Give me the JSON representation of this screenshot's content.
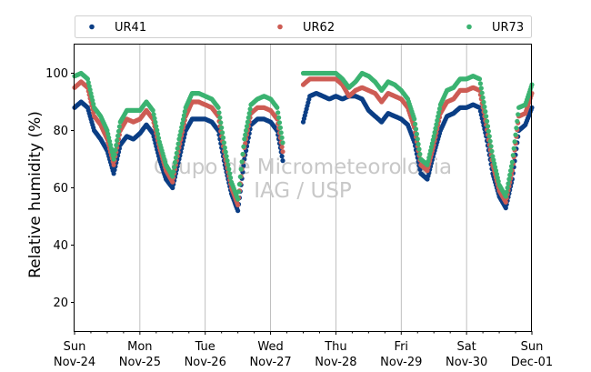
{
  "chart_data": {
    "type": "scatter",
    "ylabel": "Relative humidity (%)",
    "xlabel": "",
    "ylim": [
      10,
      110
    ],
    "yticks": [
      20,
      40,
      60,
      80,
      100
    ],
    "xlim": [
      0,
      7
    ],
    "x_unit": "days since Nov-24 00:00",
    "xticks": [
      {
        "x": 0,
        "day": "Sun",
        "date": "Nov-24"
      },
      {
        "x": 1,
        "day": "Mon",
        "date": "Nov-25"
      },
      {
        "x": 2,
        "day": "Tue",
        "date": "Nov-26"
      },
      {
        "x": 3,
        "day": "Wed",
        "date": "Nov-27"
      },
      {
        "x": 4,
        "day": "Thu",
        "date": "Nov-28"
      },
      {
        "x": 5,
        "day": "Fri",
        "date": "Nov-29"
      },
      {
        "x": 6,
        "day": "Sat",
        "date": "Nov-30"
      },
      {
        "x": 7,
        "day": "Sun",
        "date": "Dec-01"
      }
    ],
    "grid": "vertical",
    "legend_position": "top",
    "watermark": [
      "Grupo de Micrometeorologia",
      "IAG / USP"
    ],
    "series": [
      {
        "name": "UR41",
        "color": "#0b3e85",
        "x": [
          0.0,
          0.1,
          0.2,
          0.3,
          0.4,
          0.5,
          0.6,
          0.7,
          0.8,
          0.9,
          1.0,
          1.1,
          1.2,
          1.3,
          1.4,
          1.5,
          1.6,
          1.7,
          1.8,
          1.9,
          2.0,
          2.1,
          2.2,
          2.3,
          2.4,
          2.5,
          2.6,
          2.7,
          2.8,
          2.9,
          3.0,
          3.1,
          3.2,
          3.3,
          3.4,
          3.5,
          3.6,
          3.7,
          3.8,
          3.9,
          4.0,
          4.1,
          4.2,
          4.3,
          4.4,
          4.5,
          4.6,
          4.7,
          4.8,
          4.9,
          5.0,
          5.1,
          5.2,
          5.3,
          5.4,
          5.5,
          5.6,
          5.7,
          5.8,
          5.9,
          6.0,
          6.1,
          6.2,
          6.3,
          6.4,
          6.5,
          6.6,
          6.7,
          6.8,
          6.9,
          7.0
        ],
        "y": [
          88,
          90,
          88,
          80,
          77,
          73,
          65,
          75,
          78,
          77,
          79,
          82,
          79,
          70,
          63,
          60,
          70,
          80,
          84,
          84,
          84,
          83,
          80,
          68,
          58,
          52,
          70,
          82,
          84,
          84,
          83,
          80,
          68,
          null,
          null,
          83,
          92,
          93,
          92,
          91,
          92,
          91,
          92,
          92,
          91,
          87,
          85,
          83,
          86,
          85,
          84,
          82,
          76,
          65,
          63,
          72,
          80,
          85,
          86,
          88,
          88,
          89,
          88,
          78,
          65,
          57,
          53,
          63,
          80,
          82,
          88
        ]
      },
      {
        "name": "UR62",
        "color": "#cd5c54",
        "x": [
          0.0,
          0.1,
          0.2,
          0.3,
          0.4,
          0.5,
          0.6,
          0.7,
          0.8,
          0.9,
          1.0,
          1.1,
          1.2,
          1.3,
          1.4,
          1.5,
          1.6,
          1.7,
          1.8,
          1.9,
          2.0,
          2.1,
          2.2,
          2.3,
          2.4,
          2.5,
          2.6,
          2.7,
          2.8,
          2.9,
          3.0,
          3.1,
          3.2,
          3.3,
          3.4,
          3.5,
          3.6,
          3.7,
          3.8,
          3.9,
          4.0,
          4.1,
          4.2,
          4.3,
          4.4,
          4.5,
          4.6,
          4.7,
          4.8,
          4.9,
          5.0,
          5.1,
          5.2,
          5.3,
          5.4,
          5.5,
          5.6,
          5.7,
          5.8,
          5.9,
          6.0,
          6.1,
          6.2,
          6.3,
          6.4,
          6.5,
          6.6,
          6.7,
          6.8,
          6.9,
          7.0
        ],
        "y": [
          95,
          97,
          95,
          85,
          82,
          77,
          68,
          80,
          84,
          83,
          84,
          87,
          84,
          74,
          66,
          62,
          74,
          85,
          90,
          90,
          89,
          88,
          85,
          71,
          60,
          54,
          74,
          86,
          88,
          88,
          87,
          84,
          71,
          null,
          null,
          96,
          98,
          98,
          98,
          98,
          98,
          96,
          92,
          94,
          95,
          94,
          93,
          90,
          93,
          92,
          91,
          88,
          81,
          68,
          66,
          75,
          86,
          90,
          91,
          94,
          94,
          95,
          94,
          82,
          68,
          59,
          55,
          66,
          85,
          86,
          93
        ]
      },
      {
        "name": "UR73",
        "color": "#3bb371",
        "x": [
          0.0,
          0.1,
          0.2,
          0.3,
          0.4,
          0.5,
          0.6,
          0.7,
          0.8,
          0.9,
          1.0,
          1.1,
          1.2,
          1.3,
          1.4,
          1.5,
          1.6,
          1.7,
          1.8,
          1.9,
          2.0,
          2.1,
          2.2,
          2.3,
          2.4,
          2.5,
          2.6,
          2.7,
          2.8,
          2.9,
          3.0,
          3.1,
          3.2,
          3.3,
          3.4,
          3.5,
          3.6,
          3.7,
          3.8,
          3.9,
          4.0,
          4.1,
          4.2,
          4.3,
          4.4,
          4.5,
          4.6,
          4.7,
          4.8,
          4.9,
          5.0,
          5.1,
          5.2,
          5.3,
          5.4,
          5.5,
          5.6,
          5.7,
          5.8,
          5.9,
          6.0,
          6.1,
          6.2,
          6.3,
          6.4,
          6.5,
          6.6,
          6.7,
          6.8,
          6.9,
          7.0
        ],
        "y": [
          99,
          100,
          98,
          88,
          85,
          80,
          70,
          83,
          87,
          87,
          87,
          90,
          87,
          76,
          68,
          64,
          77,
          88,
          93,
          93,
          92,
          91,
          88,
          74,
          62,
          56,
          77,
          89,
          91,
          92,
          91,
          88,
          74,
          null,
          null,
          100,
          100,
          100,
          100,
          100,
          100,
          98,
          95,
          97,
          100,
          99,
          97,
          94,
          97,
          96,
          94,
          91,
          84,
          70,
          68,
          78,
          89,
          94,
          95,
          98,
          98,
          99,
          98,
          85,
          71,
          61,
          57,
          69,
          88,
          89,
          96
        ]
      }
    ]
  }
}
